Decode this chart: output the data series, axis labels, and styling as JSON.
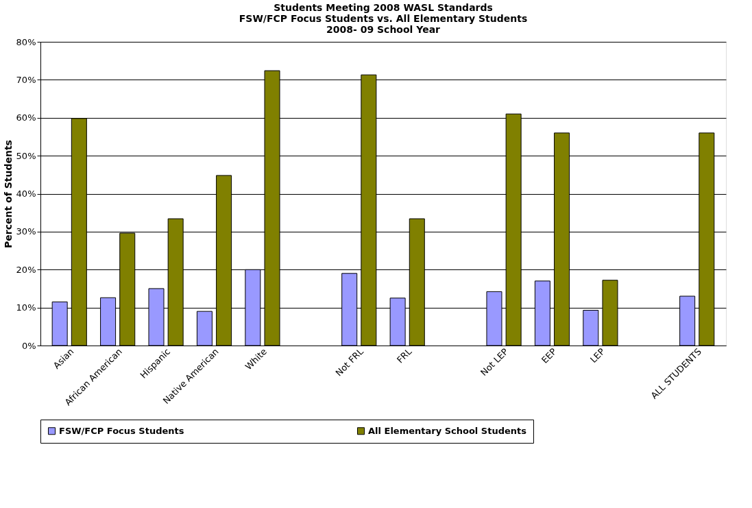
{
  "chart_data": {
    "type": "bar",
    "title": "Students Meeting 2008 WASL Standards\nFSW/FCP Focus Students vs. All Elementary Students\n2008- 09 School Year",
    "ylabel": "Percent of Students",
    "categories": [
      "Asian",
      "African American",
      "Hispanic",
      "Native American",
      "White",
      null,
      "Not FRL",
      "FRL",
      null,
      "Not LEP",
      "EEP",
      "LEP",
      null,
      "ALL STUDENTS"
    ],
    "series": [
      {
        "name": "FSW/FCP Focus Students",
        "color": "#9999ff",
        "values": [
          11.5,
          12.6,
          15,
          9,
          20,
          null,
          19,
          12.5,
          null,
          14.2,
          17,
          9.3,
          null,
          13
        ]
      },
      {
        "name": "All Elementary School Students",
        "color": "#808000",
        "values": [
          59.8,
          29.6,
          33.4,
          44.8,
          72.4,
          null,
          71.3,
          33.4,
          null,
          61,
          56,
          17.2,
          null,
          56
        ]
      }
    ],
    "ylim": [
      0,
      80
    ],
    "yticks": [
      {
        "value": 0,
        "label": "0%"
      },
      {
        "value": 10,
        "label": "10%"
      },
      {
        "value": 20,
        "label": "20%"
      },
      {
        "value": 30,
        "label": "30%"
      },
      {
        "value": 40,
        "label": "40%"
      },
      {
        "value": 50,
        "label": "50%"
      },
      {
        "value": 60,
        "label": "60%"
      },
      {
        "value": 70,
        "label": "70%"
      },
      {
        "value": 80,
        "label": "80%"
      }
    ],
    "grid": "y",
    "legend": "bottom"
  }
}
